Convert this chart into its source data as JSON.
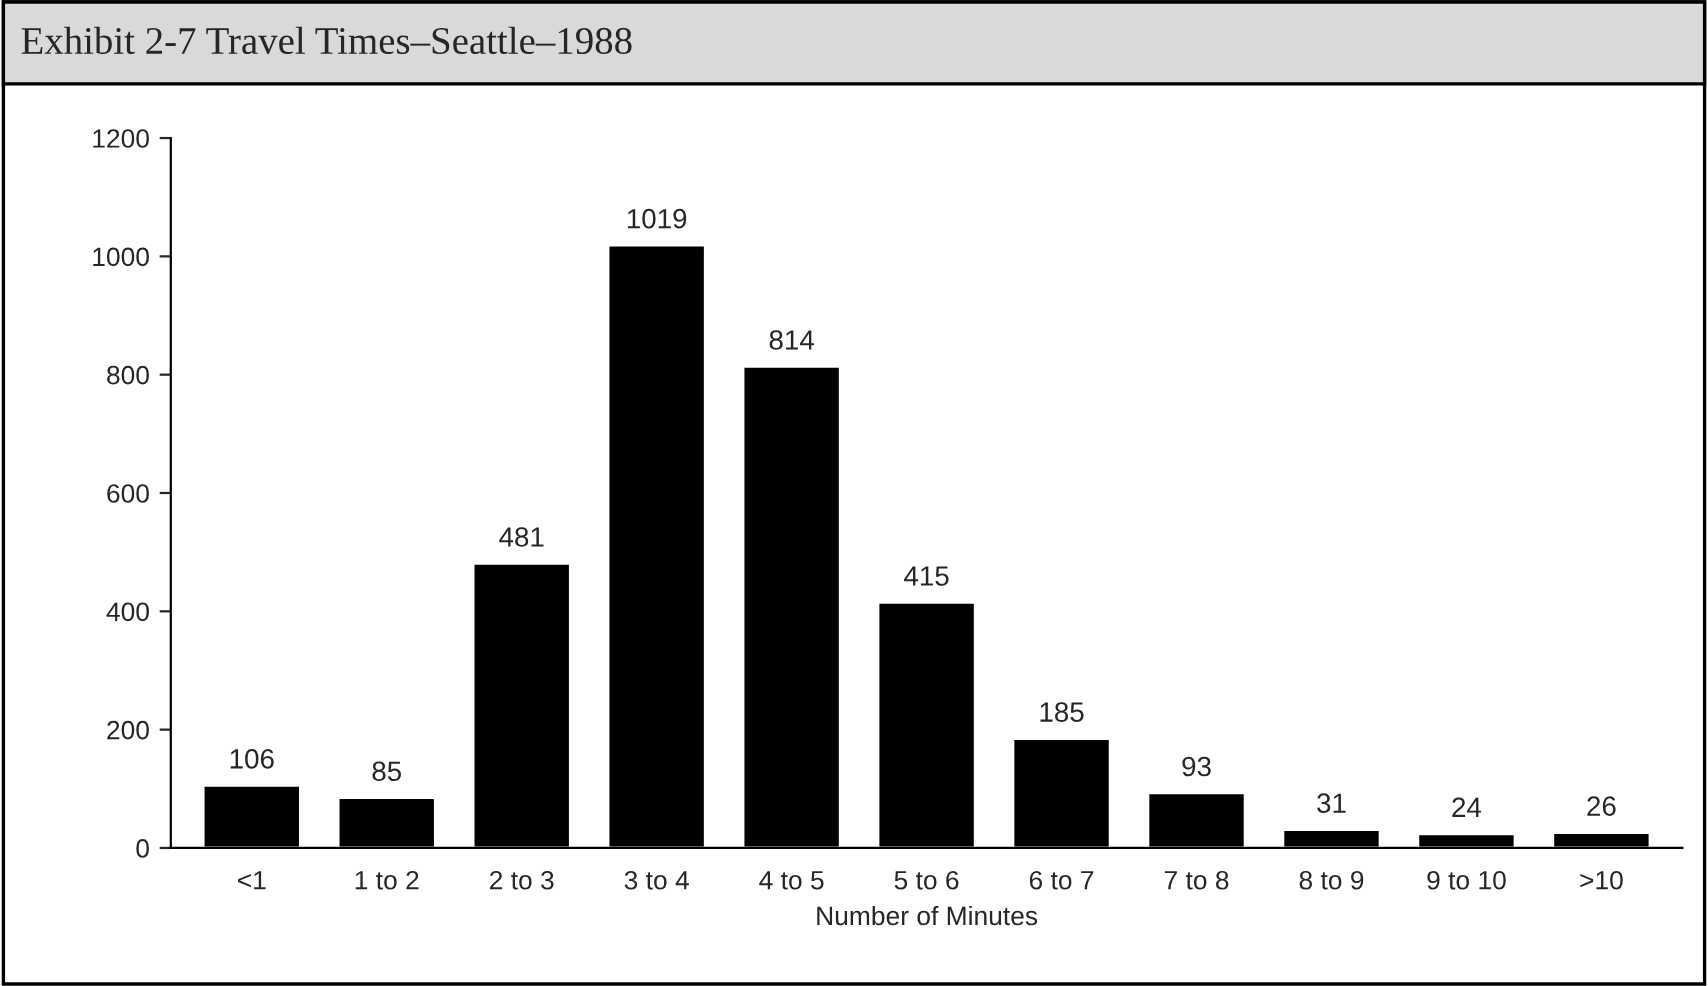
{
  "chart_data": {
    "type": "bar",
    "title": "Exhibit 2-7 Travel Times–Seattle–1988",
    "xlabel": "Number of Minutes",
    "categories": [
      "<1",
      "1 to 2",
      "2 to 3",
      "3 to 4",
      "4 to 5",
      "5 to 6",
      "6 to 7",
      "7 to 8",
      "8 to 9",
      "9 to 10",
      ">10"
    ],
    "values": [
      106,
      85,
      481,
      1019,
      814,
      415,
      185,
      93,
      31,
      24,
      26
    ],
    "color": "#000000",
    "ylim": [
      0,
      1200
    ],
    "yticks": [
      0,
      200,
      400,
      600,
      800,
      1000,
      1200
    ],
    "grid": false,
    "data_labels": true
  }
}
